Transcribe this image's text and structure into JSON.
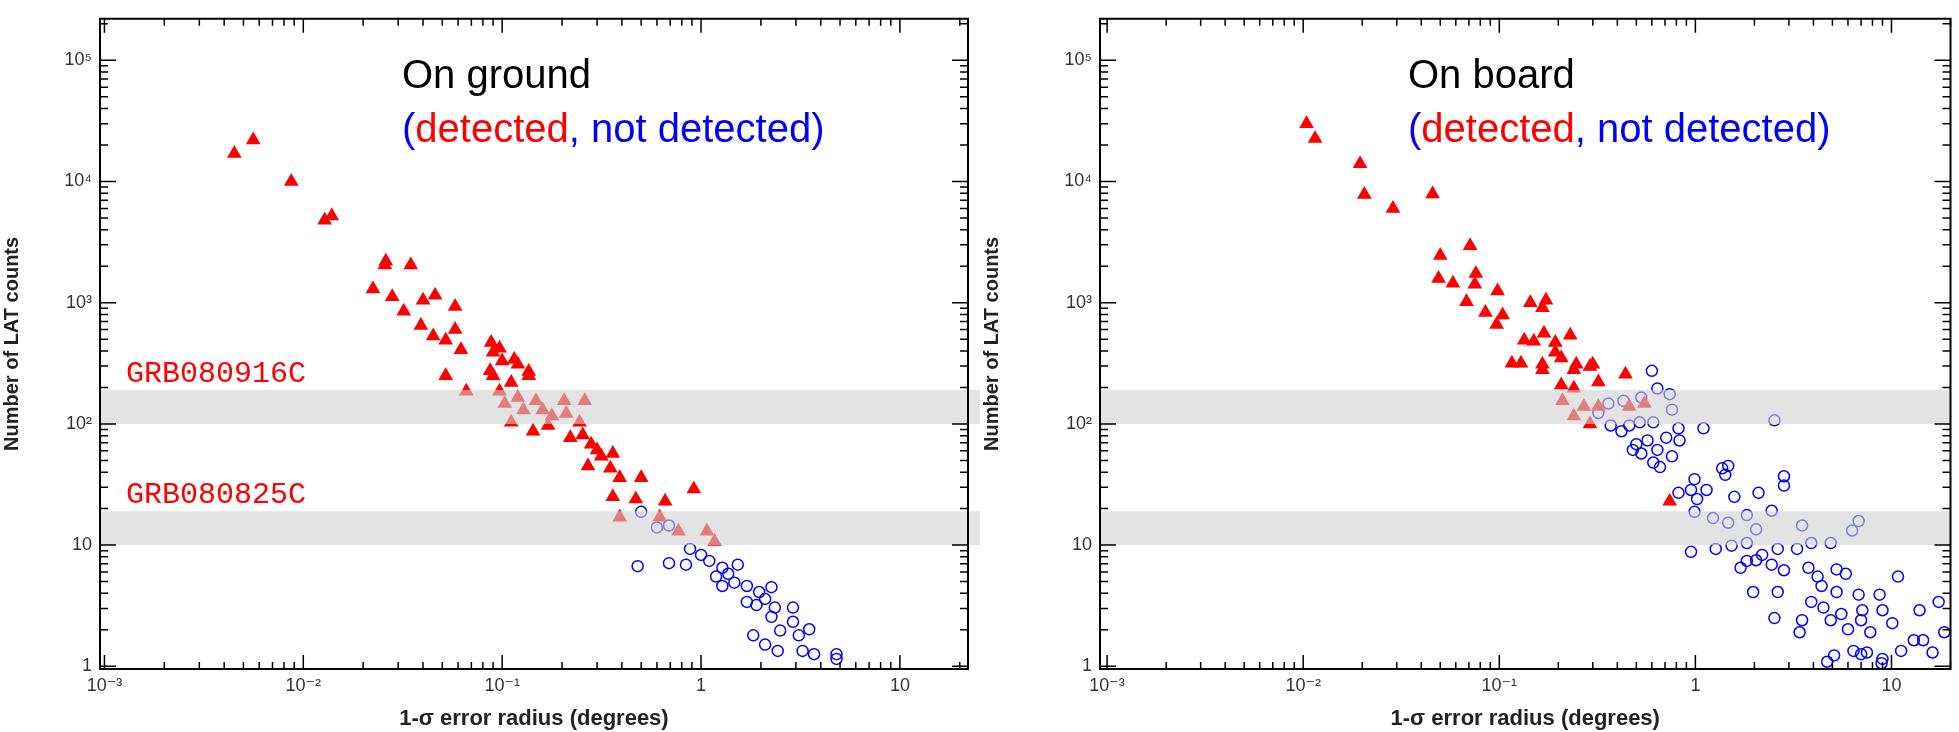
{
  "chart_data": [
    {
      "type": "scatter",
      "title": "On ground",
      "xlabel": "1-σ error radius (degrees)",
      "ylabel": "Number of LAT counts",
      "log": "xy",
      "grid": false,
      "legend": "top",
      "annotations": [
        "(",
        ", ",
        ")"
      ],
      "xlim": [
        0.00095,
        22
      ],
      "xticks": [
        {
          "value": 0.001,
          "label": "10⁻³"
        },
        {
          "value": 0.01,
          "label": "10⁻²"
        },
        {
          "value": 0.1,
          "label": "10⁻¹"
        },
        {
          "value": 1,
          "label": "1"
        },
        {
          "value": 10,
          "label": "10"
        }
      ],
      "ylim": [
        0.95,
        220000
      ],
      "yticks": [
        {
          "value": 1,
          "label": "1"
        },
        {
          "value": 10,
          "label": "10"
        },
        {
          "value": 100,
          "label": "10²"
        },
        {
          "value": 1000,
          "label": "10³"
        },
        {
          "value": 10000,
          "label": "10⁴"
        },
        {
          "value": 100000,
          "label": "10⁵"
        }
      ],
      "bands": [
        {
          "axis": "y",
          "from": 100,
          "to": 190,
          "label": "GRB080916C",
          "color": "#d0d0d0"
        },
        {
          "axis": "y",
          "from": 10,
          "to": 19,
          "label": "GRB080825C",
          "color": "#d0d0d0"
        }
      ],
      "series": [
        {
          "name": "detected",
          "color": "#ff0000",
          "marker": "triangle",
          "x": [
            0.0045,
            0.0056,
            0.0087,
            0.0128,
            0.0139,
            0.0224,
            0.0257,
            0.026,
            0.0347,
            0.028,
            0.032,
            0.04,
            0.046,
            0.039,
            0.045,
            0.052,
            0.058,
            0.058,
            0.062,
            0.088,
            0.09,
            0.097,
            0.1,
            0.115,
            0.12,
            0.136,
            0.087,
            0.052,
            0.066,
            0.09,
            0.097,
            0.111,
            0.103,
            0.12,
            0.136,
            0.148,
            0.16,
            0.178,
            0.205,
            0.21,
            0.245,
            0.26,
            0.111,
            0.143,
            0.17,
            0.22,
            0.254,
            0.28,
            0.3,
            0.27,
            0.315,
            0.36,
            0.35,
            0.39,
            0.5,
            0.36,
            0.47,
            0.66,
            0.92,
            0.39,
            0.62,
            0.77,
            1.07,
            1.17,
            0.128
          ],
          "values": [
            17000,
            22000,
            10000,
            4800,
            5200,
            1300,
            2050,
            2200,
            2050,
            1120,
            850,
            1050,
            1150,
            650,
            530,
            490,
            930,
            600,
            410,
            470,
            390,
            420,
            330,
            340,
            310,
            270,
            275,
            250,
            186,
            250,
            186,
            220,
            147,
            165,
            250,
            155,
            130,
            116,
            155,
            122,
            103,
            155,
            103,
            87,
            97,
            77,
            81,
            68,
            61,
            45,
            54,
            57,
            43,
            36,
            36,
            25,
            24,
            23,
            29,
            17,
            17,
            13,
            13,
            10.7,
            130
          ]
        },
        {
          "name": "not detected",
          "color": "#0000ff",
          "marker": "circle",
          "x": [
            0.48,
            0.69,
            0.84,
            0.5,
            0.6,
            0.69,
            0.88,
            1.0,
            1.1,
            1.28,
            1.19,
            1.37,
            1.47,
            1.28,
            1.7,
            1.96,
            2.26,
            1.7,
            1.9,
            2.1,
            2.35,
            2.26,
            1.83,
            2.1,
            2.43,
            2.9,
            3.1,
            3.5,
            3.24,
            3.7,
            4.8,
            4.8,
            2.5,
            1.53,
            2.9
          ],
          "values": [
            6.7,
            7.1,
            6.9,
            18.8,
            14,
            14.5,
            9.3,
            8.3,
            7.4,
            6.5,
            5.5,
            5.8,
            4.9,
            4.6,
            4.6,
            4.1,
            4.5,
            3.4,
            3.2,
            3.6,
            3.05,
            2.56,
            1.8,
            1.51,
            1.34,
            2.33,
            1.8,
            2.02,
            1.34,
            1.26,
            1.26,
            1.15,
            1.97,
            6.9,
            3.05
          ]
        }
      ]
    },
    {
      "type": "scatter",
      "title": "On board",
      "xlabel": "1-σ error radius (degrees)",
      "ylabel": "Number of LAT counts",
      "log": "xy",
      "grid": false,
      "legend": "top",
      "annotations": [
        "(",
        ", ",
        ")"
      ],
      "xlim": [
        0.00092,
        20
      ],
      "xticks": [
        {
          "value": 0.001,
          "label": "10⁻³"
        },
        {
          "value": 0.01,
          "label": "10⁻²"
        },
        {
          "value": 0.1,
          "label": "10⁻¹"
        },
        {
          "value": 1,
          "label": "1"
        },
        {
          "value": 10,
          "label": "10"
        }
      ],
      "ylim": [
        0.95,
        220000
      ],
      "yticks": [
        {
          "value": 1,
          "label": "1"
        },
        {
          "value": 10,
          "label": "10"
        },
        {
          "value": 100,
          "label": "10²"
        },
        {
          "value": 1000,
          "label": "10³"
        },
        {
          "value": 10000,
          "label": "10⁴"
        },
        {
          "value": 100000,
          "label": "10⁵"
        }
      ],
      "bands": [
        {
          "axis": "y",
          "from": 100,
          "to": 190,
          "color": "#d0d0d0"
        },
        {
          "axis": "y",
          "from": 10,
          "to": 19,
          "color": "#d0d0d0"
        }
      ],
      "series": [
        {
          "name": "detected",
          "color": "#ff0000",
          "marker": "triangle",
          "x": [
            0.0104,
            0.0115,
            0.0195,
            0.0205,
            0.0287,
            0.0457,
            0.05,
            0.049,
            0.058,
            0.071,
            0.076,
            0.075,
            0.068,
            0.098,
            0.085,
            0.104,
            0.097,
            0.144,
            0.173,
            0.166,
            0.134,
            0.15,
            0.169,
            0.193,
            0.23,
            0.193,
            0.116,
            0.129,
            0.166,
            0.207,
            0.247,
            0.3,
            0.44,
            0.166,
            0.24,
            0.29,
            0.207,
            0.24,
            0.32,
            0.21,
            0.27,
            0.32,
            0.46,
            0.55,
            0.24,
            0.29,
            0.74
          ],
          "values": [
            30000,
            22600,
            14000,
            7800,
            6000,
            7900,
            2450,
            1580,
            1450,
            2950,
            1740,
            1420,
            1020,
            1250,
            830,
            790,
            660,
            1000,
            1050,
            910,
            490,
            480,
            560,
            470,
            540,
            390,
            316,
            316,
            310,
            350,
            310,
            310,
            257,
            280,
            280,
            297,
            209,
            197,
            222,
            155,
            139,
            139,
            139,
            147,
            116,
            100,
            23
          ]
        },
        {
          "name": "not detected",
          "color": "#0000ff",
          "marker": "circle",
          "x": [
            0.6,
            0.64,
            0.74,
            0.76,
            0.53,
            0.43,
            0.36,
            0.32,
            0.37,
            0.42,
            0.46,
            0.52,
            0.61,
            0.82,
            0.5,
            0.57,
            0.71,
            0.83,
            0.48,
            0.53,
            0.64,
            0.76,
            0.61,
            0.66,
            1.1,
            2.53,
            1.37,
            1.47,
            1.42,
            2.83,
            0.99,
            0.95,
            0.82,
            1.02,
            1.14,
            1.58,
            2.1,
            2.83,
            0.99,
            1.23,
            1.47,
            2.04,
            2.45,
            1.83,
            3.5,
            6.3,
            6.8,
            0.95,
            1.27,
            1.53,
            1.83,
            1.83,
            2.19,
            2.63,
            3.3,
            3.9,
            4.9,
            1.7,
            2.04,
            2.45,
            2.83,
            3.77,
            4.2,
            4.4,
            5.25,
            5.85,
            1.97,
            2.63,
            5.25,
            6.8,
            8.7,
            10.8,
            3.9,
            4.5,
            5.55,
            7.1,
            9.0,
            13.9,
            17.4,
            2.53,
            3.5,
            4.9,
            7.0,
            10.1,
            3.4,
            6.0,
            7.8,
            18.6,
            6.4,
            7.5,
            9.0,
            11.2,
            13.0,
            14.5,
            16.2,
            5.1,
            4.7,
            8.9,
            7.0
          ],
          "values": [
            274,
            196,
            176,
            131,
            165,
            155,
            147,
            123,
            97,
            87,
            97,
            103,
            103,
            92,
            68,
            73,
            77,
            73,
            61,
            57,
            61,
            54,
            48,
            44,
            92,
            107,
            43,
            45,
            38,
            37,
            35,
            28.5,
            27,
            24,
            28.5,
            25,
            27,
            31,
            18.8,
            16.7,
            15.3,
            13.5,
            19.2,
            17.7,
            14.5,
            13.2,
            15.8,
            8.8,
            9.3,
            9.9,
            10.4,
            7.4,
            8.3,
            9.3,
            9.3,
            10.4,
            10.4,
            6.5,
            7.5,
            6.9,
            6.2,
            6.5,
            5.5,
            4.6,
            6.3,
            5.8,
            4.1,
            4.1,
            4.1,
            3.9,
            3.9,
            5.5,
            3.4,
            3.05,
            2.7,
            2.9,
            2.9,
            2.9,
            3.4,
            2.5,
            2.4,
            2.4,
            2.4,
            2.27,
            1.91,
            2.02,
            1.91,
            1.91,
            1.34,
            1.3,
            1.15,
            1.34,
            1.64,
            1.64,
            1.3,
            1.23,
            1.09,
            1.06,
            1.26
          ]
        }
      ]
    }
  ]
}
